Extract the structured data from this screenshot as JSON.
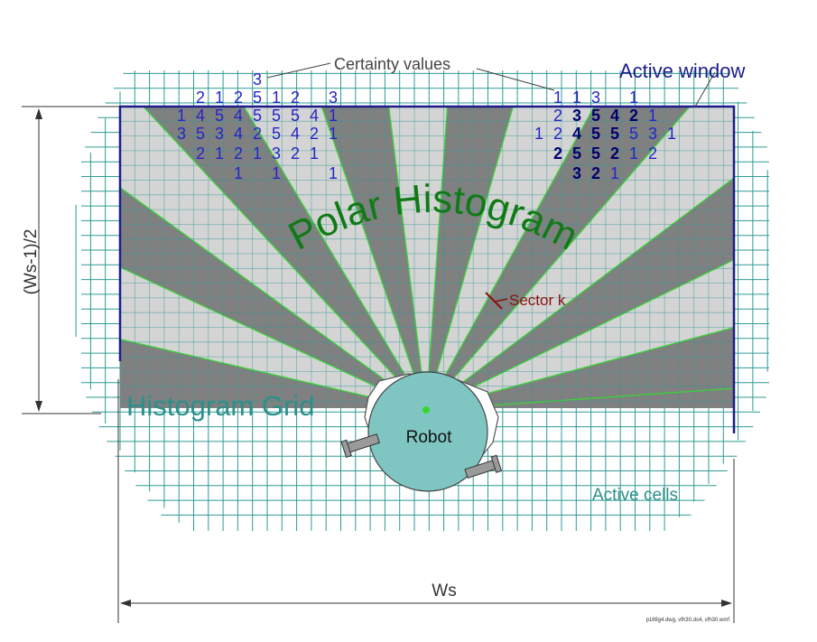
{
  "labels": {
    "certainty_values": "Certainty values",
    "active_window": "Active window",
    "polar_histogram": "Polar Histogram",
    "sector_k": "Sector k",
    "histogram_grid": "Histogram Grid",
    "robot": "Robot",
    "active_cells": "Active cells",
    "ws": "Ws",
    "half_ws": "(Ws-1)/2",
    "footnote": "p16fig4.dwg, vfh30.ds4, vfh30.wmf"
  },
  "certainty_left": [
    {
      "row": 0,
      "col": 3,
      "v": "3"
    },
    {
      "row": 1,
      "col": 0,
      "v": "2"
    },
    {
      "row": 1,
      "col": 1,
      "v": "1"
    },
    {
      "row": 1,
      "col": 2,
      "v": "2"
    },
    {
      "row": 1,
      "col": 3,
      "v": "5"
    },
    {
      "row": 1,
      "col": 4,
      "v": "1"
    },
    {
      "row": 1,
      "col": 5,
      "v": "2"
    },
    {
      "row": 1,
      "col": 7,
      "v": "3"
    },
    {
      "row": 2,
      "col": -1,
      "v": "1"
    },
    {
      "row": 2,
      "col": 0,
      "v": "4"
    },
    {
      "row": 2,
      "col": 1,
      "v": "5"
    },
    {
      "row": 2,
      "col": 2,
      "v": "4"
    },
    {
      "row": 2,
      "col": 3,
      "v": "5"
    },
    {
      "row": 2,
      "col": 4,
      "v": "5"
    },
    {
      "row": 2,
      "col": 5,
      "v": "5"
    },
    {
      "row": 2,
      "col": 6,
      "v": "4"
    },
    {
      "row": 2,
      "col": 7,
      "v": "1"
    },
    {
      "row": 3,
      "col": -1,
      "v": "3"
    },
    {
      "row": 3,
      "col": 0,
      "v": "5"
    },
    {
      "row": 3,
      "col": 1,
      "v": "3"
    },
    {
      "row": 3,
      "col": 2,
      "v": "4"
    },
    {
      "row": 3,
      "col": 3,
      "v": "2"
    },
    {
      "row": 3,
      "col": 4,
      "v": "5"
    },
    {
      "row": 3,
      "col": 5,
      "v": "4"
    },
    {
      "row": 3,
      "col": 6,
      "v": "2"
    },
    {
      "row": 3,
      "col": 7,
      "v": "1"
    },
    {
      "row": 4,
      "col": 0,
      "v": "2"
    },
    {
      "row": 4,
      "col": 1,
      "v": "1"
    },
    {
      "row": 4,
      "col": 2,
      "v": "2"
    },
    {
      "row": 4,
      "col": 3,
      "v": "1"
    },
    {
      "row": 4,
      "col": 4,
      "v": "3"
    },
    {
      "row": 4,
      "col": 5,
      "v": "2"
    },
    {
      "row": 4,
      "col": 6,
      "v": "1"
    },
    {
      "row": 5,
      "col": 2,
      "v": "1"
    },
    {
      "row": 5,
      "col": 4,
      "v": "1"
    },
    {
      "row": 5,
      "col": 7,
      "v": "1"
    }
  ],
  "certainty_right": [
    {
      "row": 1,
      "col": 0,
      "v": "1",
      "bold": false
    },
    {
      "row": 1,
      "col": 1,
      "v": "1",
      "bold": false
    },
    {
      "row": 1,
      "col": 2,
      "v": "3",
      "bold": false
    },
    {
      "row": 1,
      "col": 4,
      "v": "1",
      "bold": false
    },
    {
      "row": 2,
      "col": 0,
      "v": "2",
      "bold": false
    },
    {
      "row": 2,
      "col": 1,
      "v": "3",
      "bold": true
    },
    {
      "row": 2,
      "col": 2,
      "v": "5",
      "bold": true
    },
    {
      "row": 2,
      "col": 3,
      "v": "4",
      "bold": true
    },
    {
      "row": 2,
      "col": 4,
      "v": "2",
      "bold": true
    },
    {
      "row": 2,
      "col": 5,
      "v": "1",
      "bold": false
    },
    {
      "row": 3,
      "col": -1,
      "v": "1",
      "bold": false
    },
    {
      "row": 3,
      "col": 0,
      "v": "2",
      "bold": false
    },
    {
      "row": 3,
      "col": 1,
      "v": "4",
      "bold": true
    },
    {
      "row": 3,
      "col": 2,
      "v": "5",
      "bold": true
    },
    {
      "row": 3,
      "col": 3,
      "v": "5",
      "bold": true
    },
    {
      "row": 3,
      "col": 4,
      "v": "5",
      "bold": false
    },
    {
      "row": 3,
      "col": 5,
      "v": "3",
      "bold": false
    },
    {
      "row": 3,
      "col": 6,
      "v": "1",
      "bold": false
    },
    {
      "row": 4,
      "col": 0,
      "v": "2",
      "bold": true
    },
    {
      "row": 4,
      "col": 1,
      "v": "5",
      "bold": true
    },
    {
      "row": 4,
      "col": 2,
      "v": "5",
      "bold": true
    },
    {
      "row": 4,
      "col": 3,
      "v": "2",
      "bold": true
    },
    {
      "row": 4,
      "col": 4,
      "v": "1",
      "bold": false
    },
    {
      "row": 4,
      "col": 5,
      "v": "2",
      "bold": false
    },
    {
      "row": 5,
      "col": 1,
      "v": "3",
      "bold": true
    },
    {
      "row": 5,
      "col": 2,
      "v": "2",
      "bold": true
    },
    {
      "row": 5,
      "col": 3,
      "v": "1",
      "bold": false
    }
  ],
  "colors": {
    "grid": "#2e9b93",
    "window": "#1c1c8a",
    "sector_dark": "#808080",
    "sector_light": "#d4d4d4",
    "sector_edge": "#39d633",
    "polar_text": "#117a17",
    "certainty": "#2424c8",
    "certainty_bold": "#00006e",
    "sector_k": "#8a1010",
    "robot_fill": "#7fc6c2",
    "teal_text": "#2b8f8a",
    "dimension": "#333333"
  }
}
